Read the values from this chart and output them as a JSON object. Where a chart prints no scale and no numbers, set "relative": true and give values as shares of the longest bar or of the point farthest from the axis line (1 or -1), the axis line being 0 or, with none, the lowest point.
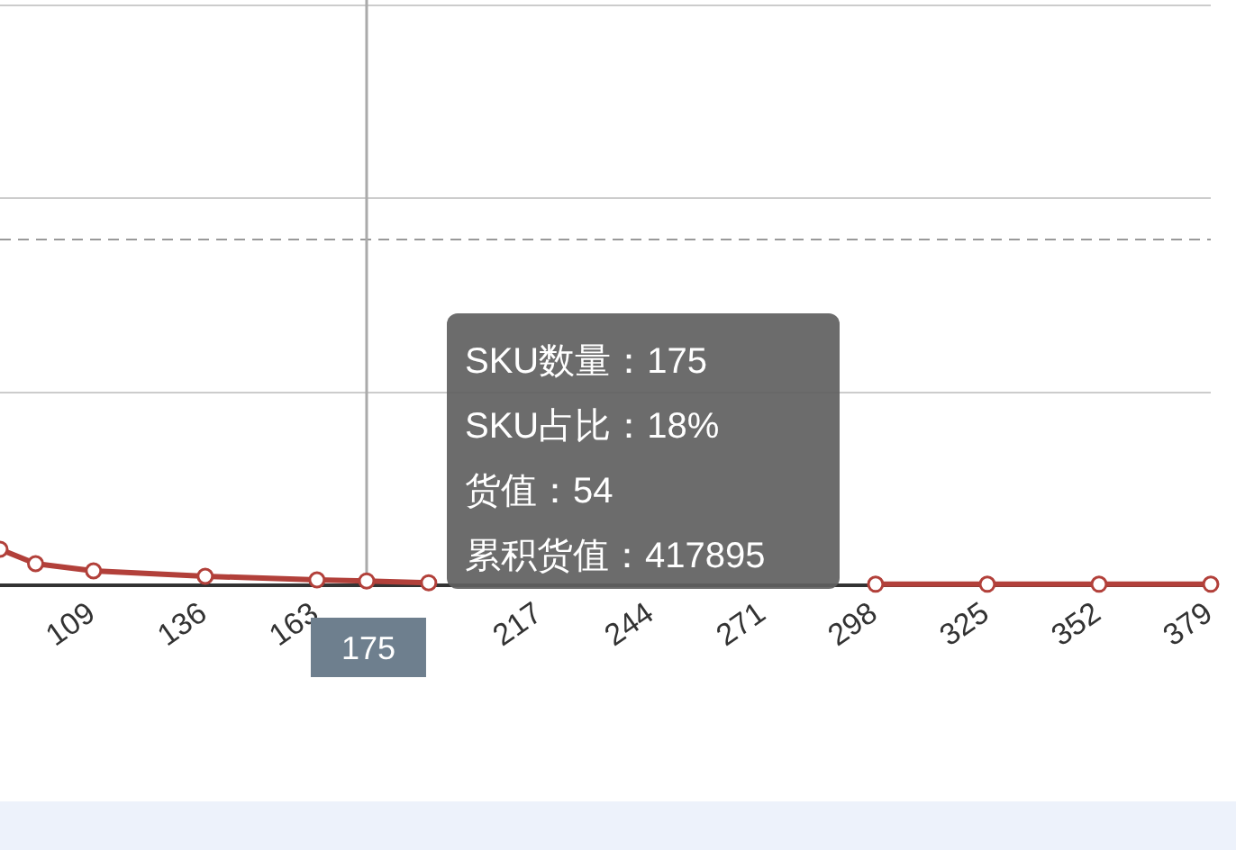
{
  "chart_data": {
    "type": "line",
    "relative": true,
    "color": "#b2403a",
    "marker": "circle",
    "x": [
      86.4,
      95,
      109,
      136,
      163,
      175,
      190,
      217,
      244,
      271,
      298,
      325,
      352,
      379
    ],
    "values": [
      1.0,
      0.6,
      0.4,
      0.25,
      0.15,
      0.12,
      0.07,
      null,
      null,
      null,
      0.03,
      0.03,
      0.03,
      0.03
    ],
    "xlim": [
      86.4,
      379
    ],
    "xticks": [
      109,
      136,
      163,
      217,
      244,
      271,
      298,
      325,
      352,
      379
    ],
    "ref_lines": [
      {
        "axis": "y",
        "value": 5.35,
        "color": "#cccccc",
        "line_style": "solid"
      },
      {
        "axis": "y",
        "value": 10.75,
        "color": "#cccccc",
        "line_style": "solid"
      },
      {
        "axis": "y",
        "value": 16.1,
        "color": "#cccccc",
        "line_style": "solid"
      },
      {
        "axis": "y",
        "value": 9.6,
        "line_style": "dashed",
        "color": "#999999"
      },
      {
        "axis": "x",
        "value": 175,
        "label": "175",
        "color": "#aaaaaa",
        "line_style": "solid"
      }
    ],
    "annotations": [
      "SKU数量：175",
      "SKU占比：18%",
      "货值：54",
      "累积货值：417895"
    ]
  }
}
